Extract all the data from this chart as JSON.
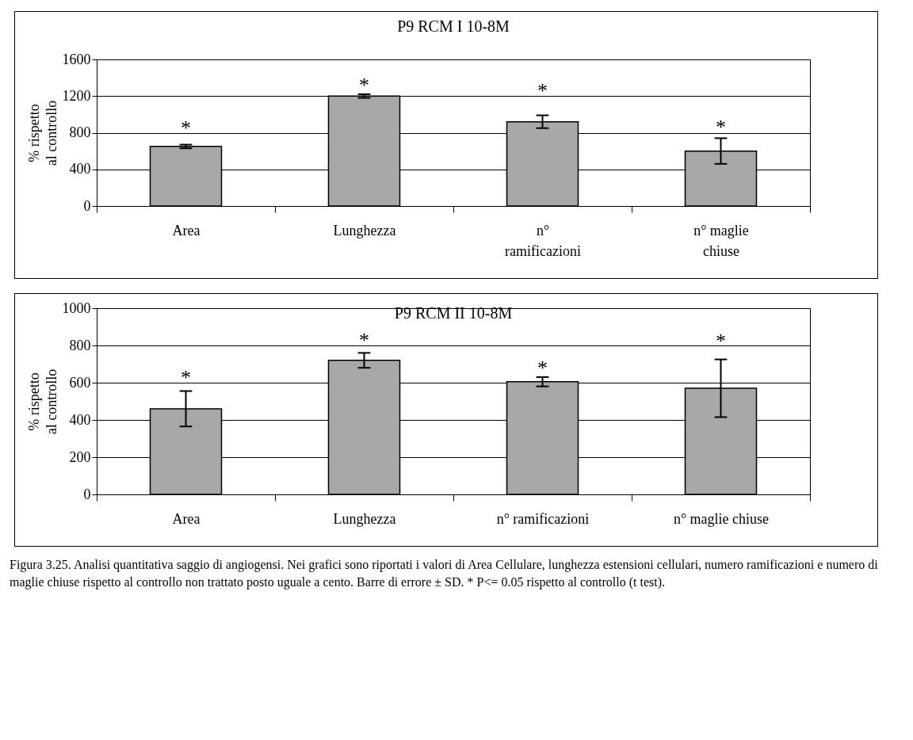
{
  "chart_data": [
    {
      "type": "bar",
      "title": "P9 RCM I 10-8M",
      "ylabel": "% rispetto al controllo",
      "categories": [
        "Area",
        "Lunghezza",
        "n° ramificazioni",
        "n° maglie chiuse"
      ],
      "series": [
        {
          "color": "#a8a8a8",
          "values": [
            650,
            1200,
            920,
            600
          ],
          "errors": [
            20,
            20,
            70,
            140
          ]
        }
      ],
      "annotations": [
        "*",
        "*",
        "*",
        "*"
      ],
      "ylim": [
        0,
        1600
      ],
      "yticks": [
        0,
        400,
        800,
        1200,
        1600
      ],
      "grid": "y"
    },
    {
      "type": "bar",
      "title": "P9 RCM II 10-8M",
      "ylabel": "% rispetto al controllo",
      "categories": [
        "Area",
        "Lunghezza",
        "n° ramificazioni",
        "n° maglie chiuse"
      ],
      "series": [
        {
          "color": "#a8a8a8",
          "values": [
            460,
            720,
            605,
            570
          ],
          "errors": [
            95,
            40,
            25,
            155
          ]
        }
      ],
      "annotations": [
        "*",
        "*",
        "*",
        "*",
        "Figura 3.25. Analisi quantitativa saggio di angiogensi. Nei grafici sono riportati i valori di Area Cellulare, lunghezza estensioni cellulari, numero ramificazioni e numero di maglie chiuse rispetto al controllo non trattato posto uguale a cento. Barre di errore ± SD. * P<= 0.05 rispetto al controllo (t test)."
      ],
      "ylim": [
        0,
        1000
      ],
      "yticks": [
        0,
        200,
        400,
        600,
        800,
        1000
      ],
      "grid": "y"
    }
  ]
}
